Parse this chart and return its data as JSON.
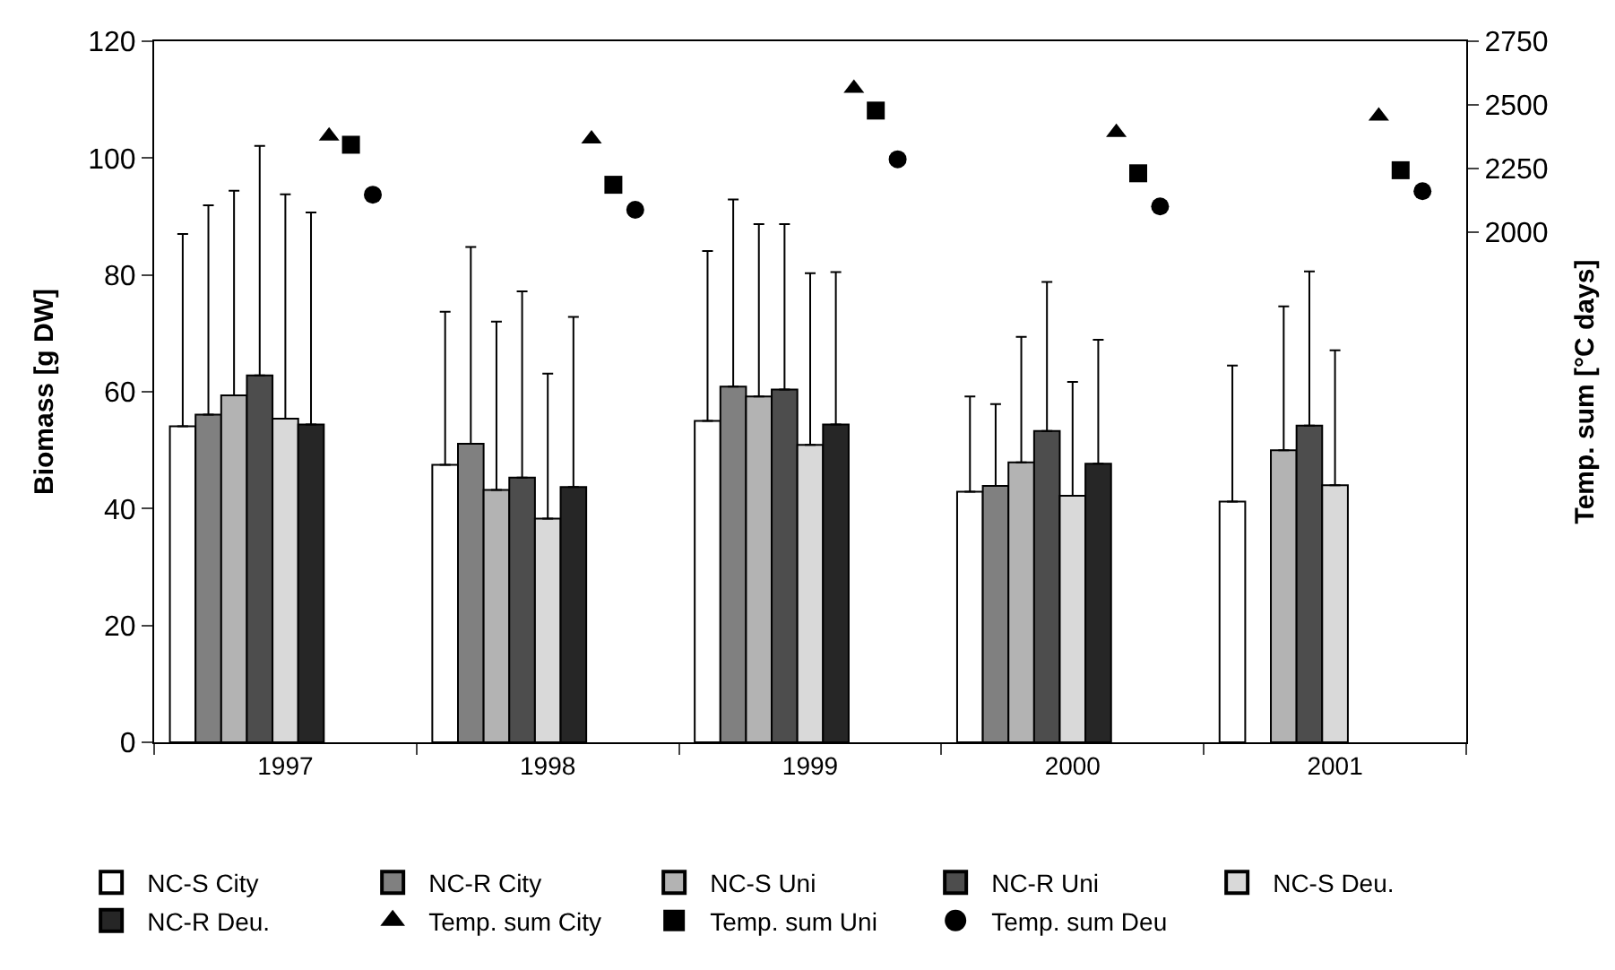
{
  "chart_data": {
    "type": "bar",
    "xlabel": null,
    "ylabel": "Biomass [g DW]",
    "y2label": "Temp. sum [°C days]",
    "categories": [
      "1997",
      "1998",
      "1999",
      "2000",
      "2001"
    ],
    "ylim": [
      0,
      120
    ],
    "yticks": [
      0,
      20,
      40,
      60,
      80,
      100,
      120
    ],
    "y2lim": [
      0,
      2750
    ],
    "y2ticks": [
      2000,
      2250,
      2500,
      2750
    ],
    "legend": "bottom",
    "series": [
      {
        "name": "NC-S City",
        "color": "#ffffff",
        "values": [
          54.1,
          47.5,
          55.0,
          42.9,
          41.2
        ],
        "errors": [
          [
            54.1,
            87.0
          ],
          [
            47.5,
            73.7
          ],
          [
            55.0,
            84.1
          ],
          [
            42.9,
            59.2
          ],
          [
            41.2,
            64.5
          ]
        ]
      },
      {
        "name": "NC-R City",
        "color": "#808080",
        "values": [
          56.1,
          51.1,
          60.9,
          43.9,
          null
        ],
        "errors": [
          [
            56.1,
            91.9
          ],
          [
            51.1,
            84.8
          ],
          [
            60.9,
            92.9
          ],
          [
            43.9,
            57.9
          ],
          null
        ]
      },
      {
        "name": "NC-S Uni",
        "color": "#b3b3b3",
        "values": [
          59.4,
          43.2,
          59.2,
          47.9,
          50.0
        ],
        "errors": [
          [
            59.4,
            94.4
          ],
          [
            43.2,
            72.0
          ],
          [
            59.2,
            88.7
          ],
          [
            47.9,
            69.4
          ],
          [
            50.0,
            74.6
          ]
        ]
      },
      {
        "name": "NC-R Uni",
        "color": "#4d4d4d",
        "values": [
          62.8,
          45.3,
          60.4,
          53.3,
          54.2
        ],
        "errors": [
          [
            62.8,
            102.1
          ],
          [
            45.3,
            77.2
          ],
          [
            60.4,
            88.7
          ],
          [
            53.3,
            78.8
          ],
          [
            54.2,
            80.6
          ]
        ]
      },
      {
        "name": "NC-S Deu.",
        "color": "#d9d9d9",
        "values": [
          55.4,
          38.3,
          50.9,
          42.2,
          44.0
        ],
        "errors": [
          [
            55.4,
            93.8
          ],
          [
            38.3,
            63.1
          ],
          [
            50.9,
            80.3
          ],
          [
            42.2,
            61.7
          ],
          [
            44.0,
            67.1
          ]
        ]
      },
      {
        "name": "NC-R Deu.",
        "color": "#262626",
        "values": [
          54.4,
          43.7,
          54.4,
          47.7,
          null
        ],
        "errors": [
          [
            54.4,
            90.7
          ],
          [
            43.7,
            72.8
          ],
          [
            54.4,
            80.5
          ],
          [
            47.7,
            68.9
          ],
          null
        ]
      },
      {
        "name": "Temp. sum City",
        "type": "scatter",
        "axis": "y2",
        "marker": "triangle",
        "color": "#000000",
        "values": [
          2378,
          2367,
          2565,
          2392,
          2456
        ]
      },
      {
        "name": "Temp. sum Uni",
        "type": "scatter",
        "axis": "y2",
        "marker": "square",
        "color": "#000000",
        "values": [
          2344,
          2187,
          2478,
          2232,
          2244
        ]
      },
      {
        "name": "Temp. sum Deu",
        "type": "scatter",
        "axis": "y2",
        "marker": "circle",
        "color": "#000000",
        "values": [
          2148,
          2089,
          2287,
          2102,
          2162
        ]
      }
    ]
  }
}
